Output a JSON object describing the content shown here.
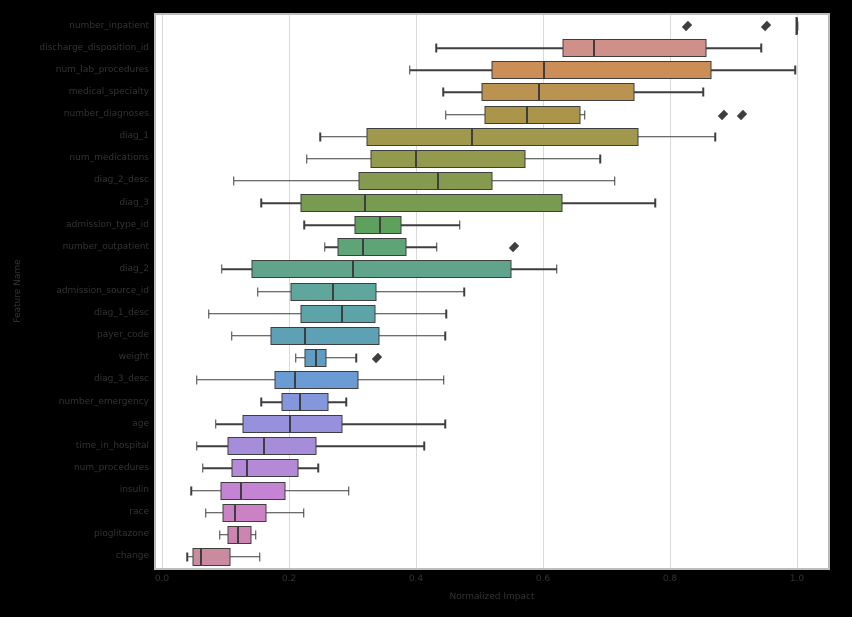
{
  "style": {
    "figure_background": "#000000",
    "plot_background": "#ffffff",
    "grid_color": "#d9d9d9",
    "spine_color": "#bdbdbd",
    "box_edge_color": "#3e3e3e",
    "text_color": "#333333"
  },
  "chart_data": {
    "type": "boxplot-horizontal",
    "title": "",
    "xlabel": "Normalized Impact",
    "ylabel": "Feature Name",
    "xlim": [
      -0.01,
      1.05
    ],
    "grid": "vertical",
    "legend": "none",
    "x_ticks": [
      {
        "value": 0.0,
        "label": "0.0"
      },
      {
        "value": 0.2,
        "label": "0.2"
      },
      {
        "value": 0.4,
        "label": "0.4"
      },
      {
        "value": 0.6,
        "label": "0.6"
      },
      {
        "value": 0.8,
        "label": "0.8"
      },
      {
        "value": 1.0,
        "label": "1.0"
      }
    ],
    "series": [
      {
        "label": "number_inpatient",
        "color": "#cf8380",
        "whisker_low": 1.0,
        "q1": 1.0,
        "median": 1.0,
        "q3": 1.0,
        "whisker_high": 1.0,
        "outliers": [
          0.826,
          0.951
        ]
      },
      {
        "label": "discharge_disposition_id",
        "color": "#d0908a",
        "whisker_low": 0.432,
        "q1": 0.633,
        "median": 0.68,
        "q3": 0.856,
        "whisker_high": 0.944,
        "outliers": []
      },
      {
        "label": "num_lab_procedures",
        "color": "#cb8e57",
        "whisker_low": 0.39,
        "q1": 0.522,
        "median": 0.601,
        "q3": 0.865,
        "whisker_high": 0.997,
        "outliers": []
      },
      {
        "label": "medical_specialty",
        "color": "#bb9351",
        "whisker_low": 0.443,
        "q1": 0.506,
        "median": 0.594,
        "q3": 0.744,
        "whisker_high": 0.852,
        "outliers": []
      },
      {
        "label": "number_diagnoses",
        "color": "#ab954b",
        "whisker_low": 0.447,
        "q1": 0.51,
        "median": 0.575,
        "q3": 0.659,
        "whisker_high": 0.666,
        "outliers": [
          0.884,
          0.914
        ]
      },
      {
        "label": "diag_1",
        "color": "#a0984d",
        "whisker_low": 0.249,
        "q1": 0.325,
        "median": 0.488,
        "q3": 0.749,
        "whisker_high": 0.871,
        "outliers": []
      },
      {
        "label": "num_medications",
        "color": "#939a4e",
        "whisker_low": 0.228,
        "q1": 0.331,
        "median": 0.4,
        "q3": 0.571,
        "whisker_high": 0.69,
        "outliers": []
      },
      {
        "label": "diag_2_desc",
        "color": "#859a4e",
        "whisker_low": 0.113,
        "q1": 0.312,
        "median": 0.435,
        "q3": 0.52,
        "whisker_high": 0.713,
        "outliers": []
      },
      {
        "label": "diag_3",
        "color": "#779b51",
        "whisker_low": 0.156,
        "q1": 0.221,
        "median": 0.319,
        "q3": 0.63,
        "whisker_high": 0.777,
        "outliers": []
      },
      {
        "label": "admission_type_id",
        "color": "#5ea15c",
        "whisker_low": 0.224,
        "q1": 0.306,
        "median": 0.344,
        "q3": 0.377,
        "whisker_high": 0.469,
        "outliers": []
      },
      {
        "label": "number_outpatient",
        "color": "#5fa477",
        "whisker_low": 0.256,
        "q1": 0.279,
        "median": 0.316,
        "q3": 0.384,
        "whisker_high": 0.433,
        "outliers": [
          0.554
        ]
      },
      {
        "label": "diag_2",
        "color": "#60a48c",
        "whisker_low": 0.094,
        "q1": 0.144,
        "median": 0.3,
        "q3": 0.549,
        "whisker_high": 0.622,
        "outliers": []
      },
      {
        "label": "admission_source_id",
        "color": "#5fa69c",
        "whisker_low": 0.151,
        "q1": 0.204,
        "median": 0.269,
        "q3": 0.337,
        "whisker_high": 0.476,
        "outliers": []
      },
      {
        "label": "diag_1_desc",
        "color": "#5da4a9",
        "whisker_low": 0.074,
        "q1": 0.221,
        "median": 0.284,
        "q3": 0.335,
        "whisker_high": 0.448,
        "outliers": []
      },
      {
        "label": "payer_code",
        "color": "#5fa1b4",
        "whisker_low": 0.11,
        "q1": 0.174,
        "median": 0.225,
        "q3": 0.341,
        "whisker_high": 0.446,
        "outliers": []
      },
      {
        "label": "weight",
        "color": "#5f9dc2",
        "whisker_low": 0.211,
        "q1": 0.226,
        "median": 0.243,
        "q3": 0.259,
        "whisker_high": 0.306,
        "outliers": [
          0.339
        ]
      },
      {
        "label": "diag_3_desc",
        "color": "#6b9bd3",
        "whisker_low": 0.055,
        "q1": 0.179,
        "median": 0.209,
        "q3": 0.308,
        "whisker_high": 0.444,
        "outliers": []
      },
      {
        "label": "number_emergency",
        "color": "#8597dc",
        "whisker_low": 0.156,
        "q1": 0.19,
        "median": 0.218,
        "q3": 0.262,
        "whisker_high": 0.29,
        "outliers": []
      },
      {
        "label": "age",
        "color": "#9791dd",
        "whisker_low": 0.085,
        "q1": 0.129,
        "median": 0.201,
        "q3": 0.284,
        "whisker_high": 0.446,
        "outliers": []
      },
      {
        "label": "time_in_hospital",
        "color": "#a58dda",
        "whisker_low": 0.055,
        "q1": 0.105,
        "median": 0.16,
        "q3": 0.242,
        "whisker_high": 0.413,
        "outliers": []
      },
      {
        "label": "num_procedures",
        "color": "#b489d8",
        "whisker_low": 0.064,
        "q1": 0.112,
        "median": 0.134,
        "q3": 0.214,
        "whisker_high": 0.246,
        "outliers": []
      },
      {
        "label": "insulin",
        "color": "#c583d4",
        "whisker_low": 0.046,
        "q1": 0.094,
        "median": 0.124,
        "q3": 0.193,
        "whisker_high": 0.294,
        "outliers": []
      },
      {
        "label": "race",
        "color": "#ca82c5",
        "whisker_low": 0.069,
        "q1": 0.097,
        "median": 0.115,
        "q3": 0.163,
        "whisker_high": 0.223,
        "outliers": []
      },
      {
        "label": "pioglitazone",
        "color": "#cd84b1",
        "whisker_low": 0.091,
        "q1": 0.105,
        "median": 0.12,
        "q3": 0.14,
        "whisker_high": 0.148,
        "outliers": []
      },
      {
        "label": "change",
        "color": "#ca8b9e",
        "whisker_low": 0.04,
        "q1": 0.05,
        "median": 0.061,
        "q3": 0.107,
        "whisker_high": 0.154,
        "outliers": []
      }
    ]
  }
}
